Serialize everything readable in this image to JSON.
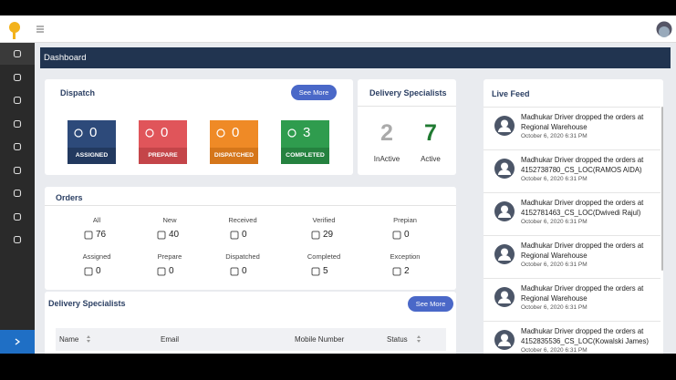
{
  "header": {
    "title": "Dashboard"
  },
  "dispatch": {
    "title": "Dispatch",
    "button": "See More",
    "tiles": [
      {
        "value": 0,
        "label": "ASSIGNED"
      },
      {
        "value": 0,
        "label": "PREPARE"
      },
      {
        "value": 0,
        "label": "DISPATCHED"
      },
      {
        "value": 3,
        "label": "COMPLETED"
      }
    ]
  },
  "specialists_summary": {
    "title": "Delivery Specialists",
    "items": [
      {
        "value": 2,
        "label": "InActive"
      },
      {
        "value": 7,
        "label": "Active"
      }
    ]
  },
  "orders": {
    "title": "Orders",
    "items": [
      {
        "label": "All",
        "value": 76
      },
      {
        "label": "New",
        "value": 40
      },
      {
        "label": "Received",
        "value": 0
      },
      {
        "label": "Verified",
        "value": 29
      },
      {
        "label": "Prepian",
        "value": 0
      },
      {
        "label": "Assigned",
        "value": 0
      },
      {
        "label": "Prepare",
        "value": 0
      },
      {
        "label": "Dispatched",
        "value": 0
      },
      {
        "label": "Completed",
        "value": 5
      },
      {
        "label": "Exception",
        "value": 2
      }
    ]
  },
  "live_feed": {
    "title": "Live Feed",
    "items": [
      {
        "text": "Madhukar Driver dropped the orders at Regional Warehouse",
        "time": "October 6, 2020 6:31 PM"
      },
      {
        "text": "Madhukar Driver dropped the orders at 4152738780_CS_LOC(RAMOS AIDA)",
        "time": "October 6, 2020 6:31 PM"
      },
      {
        "text": "Madhukar Driver dropped the orders at 4152781463_CS_LOC(Dwivedi Rajul)",
        "time": "October 6, 2020 6:31 PM"
      },
      {
        "text": "Madhukar Driver dropped the orders at Regional Warehouse",
        "time": "October 6, 2020 6:31 PM"
      },
      {
        "text": "Madhukar Driver dropped the orders at Regional Warehouse",
        "time": "October 6, 2020 6:31 PM"
      },
      {
        "text": "Madhukar Driver dropped the orders at 4152835536_CS_LOC(Kowalski James)",
        "time": "October 6, 2020 6:31 PM"
      }
    ]
  },
  "specialists_table": {
    "title": "Delivery Specialists",
    "button": "See More",
    "columns": [
      "Name",
      "Email",
      "Mobile Number",
      "Status"
    ]
  }
}
